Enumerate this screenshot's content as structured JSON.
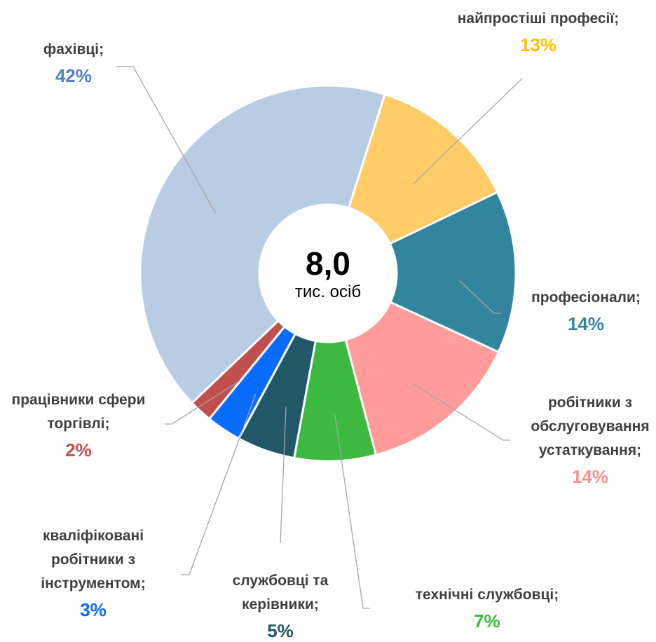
{
  "chart_data": {
    "type": "donut",
    "center_text": "8,0",
    "center_subtext": "тис. осіб",
    "categories": [
      "найпростіші професії;",
      "професіонали;",
      "робітники з обслуговування устаткування;",
      "технічні службовці;",
      "службовці та керівники;",
      "кваліфіковані робітники з інструментом;",
      "працівники сфери торгівлі;",
      "фахівці;"
    ],
    "values": [
      13,
      14,
      14,
      7,
      5,
      3,
      2,
      42
    ],
    "value_labels": [
      "13%",
      "14%",
      "14%",
      "7%",
      "5%",
      "3%",
      "2%",
      "42%"
    ],
    "colors": [
      "#ffcc66",
      "#31859c",
      "#ff9b9b",
      "#3cba40",
      "#215868",
      "#0a6cff",
      "#c0504d",
      "#b8cce4"
    ],
    "label_colors": [
      "#ffc000",
      "#31859c",
      "#ff8f8f",
      "#3cba40",
      "#215868",
      "#0a6cff",
      "#c0504d",
      "#4f81bd"
    ]
  }
}
